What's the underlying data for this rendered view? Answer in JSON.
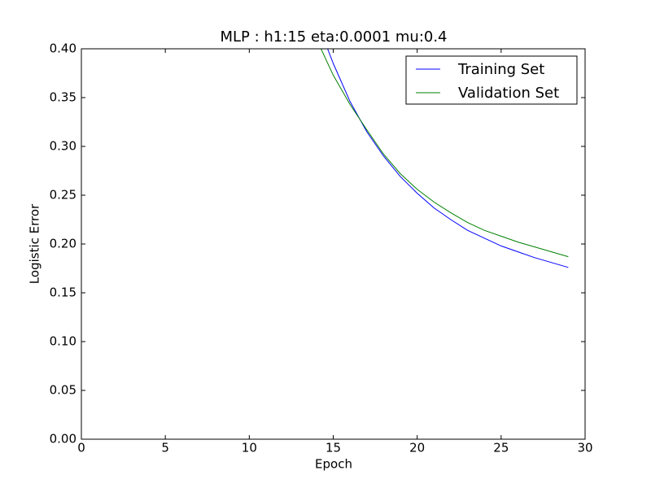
{
  "chart_data": {
    "type": "line",
    "title": "MLP : h1:15 eta:0.0001 mu:0.4",
    "x_label": "Epoch",
    "y_label": "Logistic Error",
    "x": [
      14,
      15,
      16,
      17,
      18,
      19,
      20,
      21,
      22,
      23,
      24,
      25,
      26,
      27,
      28,
      29
    ],
    "series": [
      {
        "name": "Training Set",
        "color": "#0000ff",
        "values": [
          0.43,
          0.385,
          0.346,
          0.315,
          0.29,
          0.269,
          0.252,
          0.237,
          0.225,
          0.214,
          0.206,
          0.198,
          0.192,
          0.186,
          0.181,
          0.176
        ]
      },
      {
        "name": "Validation Set",
        "color": "#008000",
        "values": [
          0.41,
          0.373,
          0.343,
          0.317,
          0.292,
          0.272,
          0.256,
          0.243,
          0.232,
          0.222,
          0.214,
          0.208,
          0.202,
          0.197,
          0.192,
          0.187
        ]
      }
    ],
    "xlim": [
      0,
      30
    ],
    "xticks": [
      0,
      5,
      10,
      15,
      20,
      25,
      30
    ],
    "ylim": [
      0,
      0.4
    ],
    "yticks": [
      {
        "value": 0,
        "label": "0.00"
      },
      {
        "value": 0.05,
        "label": "0.05"
      },
      {
        "value": 0.1,
        "label": "0.10"
      },
      {
        "value": 0.15,
        "label": "0.15"
      },
      {
        "value": 0.2,
        "label": "0.20"
      },
      {
        "value": 0.25,
        "label": "0.25"
      },
      {
        "value": 0.3,
        "label": "0.30"
      },
      {
        "value": 0.35,
        "label": "0.35"
      },
      {
        "value": 0.4,
        "label": "0.40"
      }
    ],
    "legend": "upper right",
    "grid": false
  }
}
